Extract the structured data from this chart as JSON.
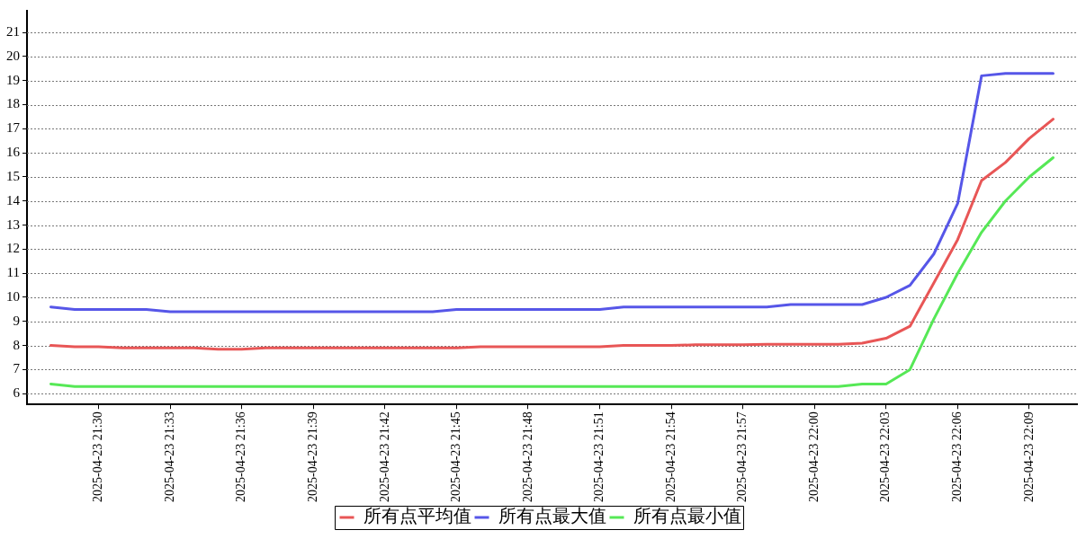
{
  "chart_data": {
    "type": "line",
    "x": [
      "2025-04-23T21:28",
      "2025-04-23T21:29",
      "2025-04-23T21:30",
      "2025-04-23T21:31",
      "2025-04-23T21:32",
      "2025-04-23T21:33",
      "2025-04-23T21:34",
      "2025-04-23T21:35",
      "2025-04-23T21:36",
      "2025-04-23T21:37",
      "2025-04-23T21:38",
      "2025-04-23T21:39",
      "2025-04-23T21:40",
      "2025-04-23T21:41",
      "2025-04-23T21:42",
      "2025-04-23T21:43",
      "2025-04-23T21:44",
      "2025-04-23T21:45",
      "2025-04-23T21:46",
      "2025-04-23T21:47",
      "2025-04-23T21:48",
      "2025-04-23T21:49",
      "2025-04-23T21:50",
      "2025-04-23T21:51",
      "2025-04-23T21:52",
      "2025-04-23T21:53",
      "2025-04-23T21:54",
      "2025-04-23T21:55",
      "2025-04-23T21:56",
      "2025-04-23T21:57",
      "2025-04-23T21:58",
      "2025-04-23T21:59",
      "2025-04-23T22:00",
      "2025-04-23T22:01",
      "2025-04-23T22:02",
      "2025-04-23T22:03",
      "2025-04-23T22:04",
      "2025-04-23T22:05",
      "2025-04-23T22:06",
      "2025-04-23T22:07",
      "2025-04-23T22:08",
      "2025-04-23T22:09",
      "2025-04-23T22:10"
    ],
    "series": [
      {
        "name": "所有点平均值",
        "color": "#e85656",
        "values": [
          8.0,
          7.95,
          7.95,
          7.9,
          7.9,
          7.9,
          7.9,
          7.85,
          7.85,
          7.9,
          7.9,
          7.9,
          7.9,
          7.9,
          7.9,
          7.9,
          7.9,
          7.9,
          7.95,
          7.95,
          7.95,
          7.95,
          7.95,
          7.95,
          8.0,
          8.0,
          8.0,
          8.03,
          8.03,
          8.03,
          8.05,
          8.05,
          8.05,
          8.05,
          8.1,
          8.3,
          8.8,
          10.6,
          12.4,
          14.85,
          15.6,
          16.6,
          17.4
        ]
      },
      {
        "name": "所有点最大值",
        "color": "#5656e8",
        "values": [
          9.6,
          9.5,
          9.5,
          9.5,
          9.5,
          9.4,
          9.4,
          9.4,
          9.4,
          9.4,
          9.4,
          9.4,
          9.4,
          9.4,
          9.4,
          9.4,
          9.4,
          9.5,
          9.5,
          9.5,
          9.5,
          9.5,
          9.5,
          9.5,
          9.6,
          9.6,
          9.6,
          9.6,
          9.6,
          9.6,
          9.6,
          9.7,
          9.7,
          9.7,
          9.7,
          10.0,
          10.5,
          11.8,
          13.9,
          19.2,
          19.3,
          19.3,
          19.3
        ]
      },
      {
        "name": "所有点最小值",
        "color": "#56e856",
        "values": [
          6.4,
          6.3,
          6.3,
          6.3,
          6.3,
          6.3,
          6.3,
          6.3,
          6.3,
          6.3,
          6.3,
          6.3,
          6.3,
          6.3,
          6.3,
          6.3,
          6.3,
          6.3,
          6.3,
          6.3,
          6.3,
          6.3,
          6.3,
          6.3,
          6.3,
          6.3,
          6.3,
          6.3,
          6.3,
          6.3,
          6.3,
          6.3,
          6.3,
          6.3,
          6.4,
          6.4,
          7.0,
          9.1,
          11.0,
          12.7,
          14.0,
          15.0,
          15.8
        ]
      }
    ],
    "xlim": [
      "2025-04-23T21:27",
      "2025-04-23T22:11"
    ],
    "xticks": [
      {
        "value": "2025-04-23T21:30",
        "label": "2025-04-23 21:30"
      },
      {
        "value": "2025-04-23T21:33",
        "label": "2025-04-23 21:33"
      },
      {
        "value": "2025-04-23T21:36",
        "label": "2025-04-23 21:36"
      },
      {
        "value": "2025-04-23T21:39",
        "label": "2025-04-23 21:39"
      },
      {
        "value": "2025-04-23T21:42",
        "label": "2025-04-23 21:42"
      },
      {
        "value": "2025-04-23T21:45",
        "label": "2025-04-23 21:45"
      },
      {
        "value": "2025-04-23T21:48",
        "label": "2025-04-23 21:48"
      },
      {
        "value": "2025-04-23T21:51",
        "label": "2025-04-23 21:51"
      },
      {
        "value": "2025-04-23T21:54",
        "label": "2025-04-23 21:54"
      },
      {
        "value": "2025-04-23T21:57",
        "label": "2025-04-23 21:57"
      },
      {
        "value": "2025-04-23T22:00",
        "label": "2025-04-23 22:00"
      },
      {
        "value": "2025-04-23T22:03",
        "label": "2025-04-23 22:03"
      },
      {
        "value": "2025-04-23T22:06",
        "label": "2025-04-23 22:06"
      },
      {
        "value": "2025-04-23T22:09",
        "label": "2025-04-23 22:09"
      }
    ],
    "ylim": [
      5.55,
      21.9
    ],
    "yticks": [
      6,
      7,
      8,
      9,
      10,
      11,
      12,
      13,
      14,
      15,
      16,
      17,
      18,
      19,
      20,
      21
    ],
    "grid": "y",
    "legend": "bottom",
    "marker": "none",
    "line_style": "solid"
  }
}
